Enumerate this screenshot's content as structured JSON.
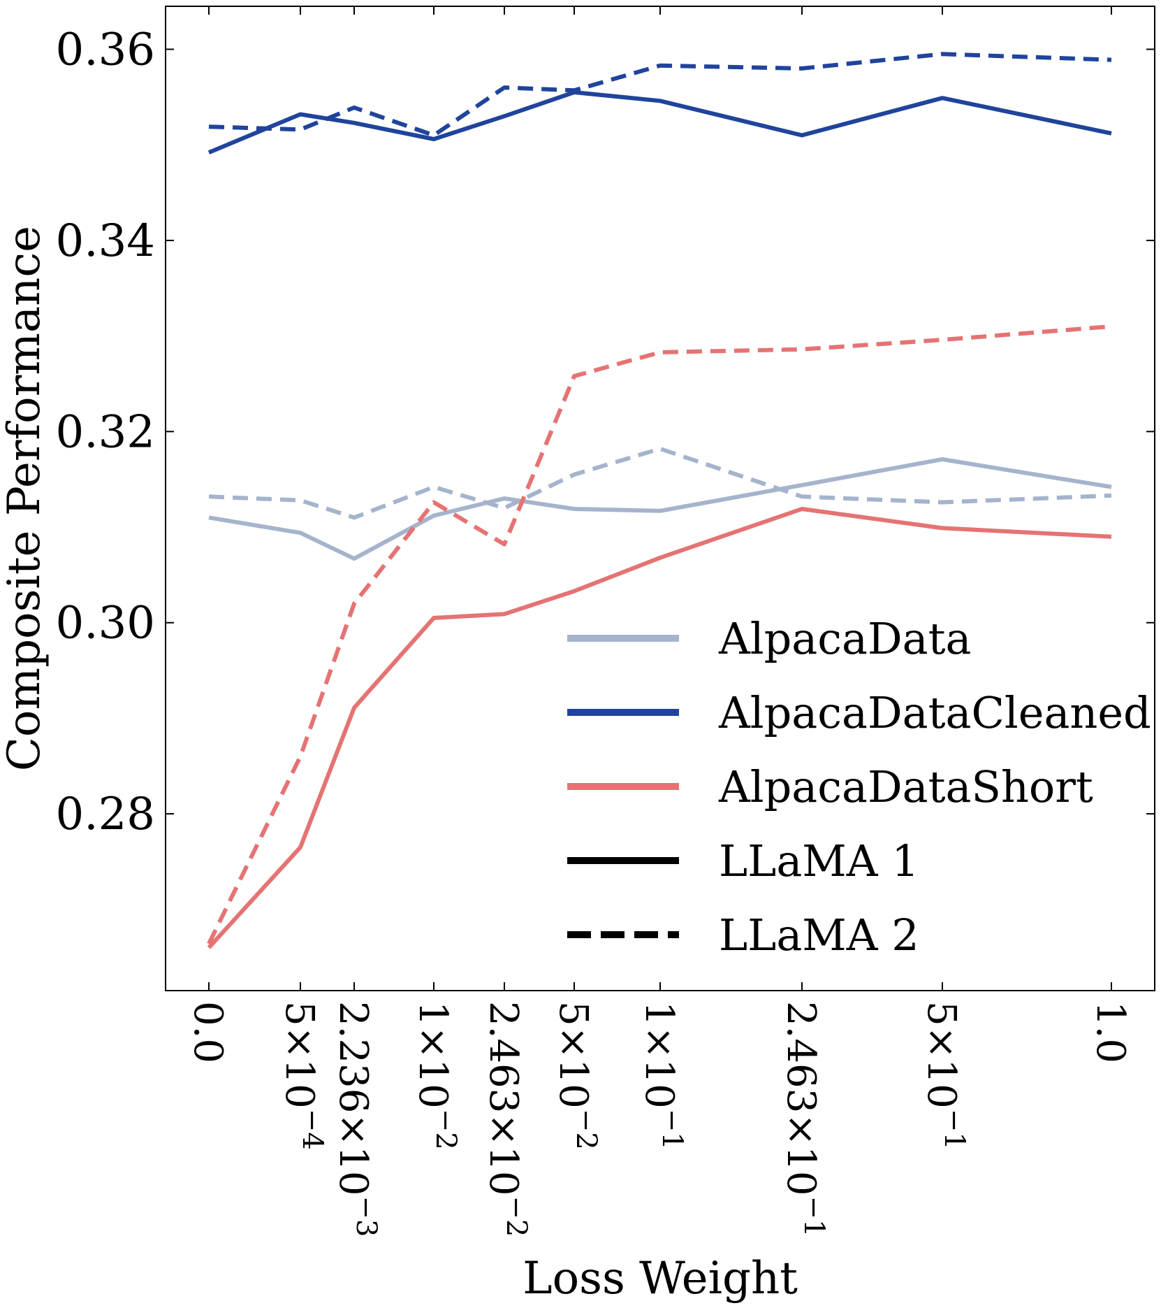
{
  "chart_data": {
    "type": "line",
    "title": "",
    "xlabel": "Loss Weight",
    "ylabel": "Composite Performance",
    "categories": [
      "0.0",
      "5×10^-4",
      "2.236×10^-3",
      "1×10^-2",
      "2.463×10^-2",
      "5×10^-2",
      "1×10^-1",
      "2.463×10^-1",
      "5×10^-1",
      "1.0"
    ],
    "x_ticks": [
      {
        "mantissa": "0.0",
        "exp": ""
      },
      {
        "mantissa": "5×10",
        "exp": "−4"
      },
      {
        "mantissa": "2.236×10",
        "exp": "−3"
      },
      {
        "mantissa": "1×10",
        "exp": "−2"
      },
      {
        "mantissa": "2.463×10",
        "exp": "−2"
      },
      {
        "mantissa": "5×10",
        "exp": "−2"
      },
      {
        "mantissa": "1×10",
        "exp": "−1"
      },
      {
        "mantissa": "2.463×10",
        "exp": "−1"
      },
      {
        "mantissa": "5×10",
        "exp": "−1"
      },
      {
        "mantissa": "1.0",
        "exp": ""
      }
    ],
    "ylim": [
      0.2615,
      0.3645
    ],
    "y_ticks": [
      "0.28",
      "0.30",
      "0.32",
      "0.34",
      "0.36"
    ],
    "legend_position": "lower-right",
    "legend": [
      {
        "label": "AlpacaData",
        "color": "#a5b4cc",
        "dash": "solid"
      },
      {
        "label": "AlpacaDataCleaned",
        "color": "#20449c",
        "dash": "solid"
      },
      {
        "label": "AlpacaDataShort",
        "color": "#e57373",
        "dash": "solid"
      },
      {
        "label": "LLaMA 1",
        "color": "#000000",
        "dash": "solid"
      },
      {
        "label": "LLaMA 2",
        "color": "#000000",
        "dash": "dashed"
      }
    ],
    "series": [
      {
        "name": "AlpacaData — LLaMA 1",
        "color": "#a5b4cc",
        "dash": "solid",
        "values": [
          0.311,
          0.3094,
          0.3067,
          0.3112,
          0.313,
          0.3119,
          0.3117,
          0.3144,
          0.3171,
          0.3142
        ]
      },
      {
        "name": "AlpacaData — LLaMA 2",
        "color": "#a5b4cc",
        "dash": "dashed",
        "values": [
          0.3132,
          0.3128,
          0.311,
          0.3142,
          0.312,
          0.3155,
          0.3182,
          0.3132,
          0.3126,
          0.3133
        ]
      },
      {
        "name": "AlpacaDataCleaned — LLaMA 1",
        "color": "#20449c",
        "dash": "solid",
        "values": [
          0.3492,
          0.3532,
          0.3523,
          0.3506,
          0.353,
          0.3555,
          0.3546,
          0.351,
          0.3549,
          0.3512
        ]
      },
      {
        "name": "AlpacaDataCleaned — LLaMA 2",
        "color": "#20449c",
        "dash": "dashed",
        "values": [
          0.3519,
          0.3516,
          0.3539,
          0.351,
          0.356,
          0.3557,
          0.3583,
          0.358,
          0.3595,
          0.3589
        ]
      },
      {
        "name": "AlpacaDataShort — LLaMA 1",
        "color": "#e57373",
        "dash": "solid",
        "values": [
          0.266,
          0.2765,
          0.2911,
          0.3005,
          0.3009,
          0.3033,
          0.3068,
          0.3119,
          0.3099,
          0.309
        ]
      },
      {
        "name": "AlpacaDataShort — LLaMA 2",
        "color": "#e57373",
        "dash": "dashed",
        "values": [
          0.2664,
          0.286,
          0.302,
          0.3126,
          0.3082,
          0.3258,
          0.3283,
          0.3286,
          0.3296,
          0.331
        ]
      }
    ]
  }
}
